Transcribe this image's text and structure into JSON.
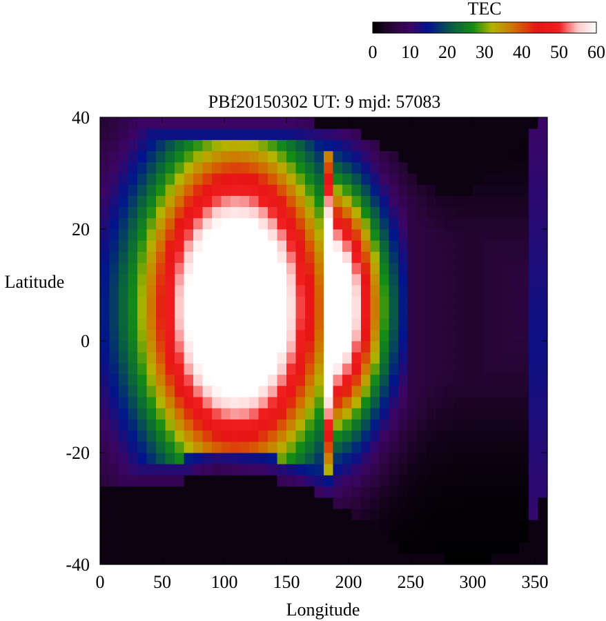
{
  "chart_data": {
    "type": "heatmap",
    "title": "PBf20150302  UT: 9  mjd: 57083",
    "xlabel": "Longitude",
    "ylabel": "Latitude",
    "xlim": [
      0,
      360
    ],
    "ylim": [
      -40,
      40
    ],
    "x_ticks": [
      "0",
      "50",
      "100",
      "150",
      "200",
      "250",
      "300",
      "350"
    ],
    "y_ticks": [
      "40",
      "20",
      "0",
      "-20",
      "-40"
    ],
    "x_tick_values": [
      0,
      50,
      100,
      150,
      200,
      250,
      300,
      350
    ],
    "y_tick_values": [
      40,
      20,
      0,
      -20,
      -40
    ],
    "grid": false,
    "colorbar": {
      "label": "TEC",
      "range": [
        0,
        60
      ],
      "ticks": [
        "0",
        "10",
        "20",
        "30",
        "40",
        "50",
        "60"
      ],
      "tick_values": [
        0,
        10,
        20,
        30,
        40,
        50,
        60
      ],
      "colors": [
        "#000000",
        "#2a0a3e",
        "#3d0a6a",
        "#00108c",
        "#1e7a1e",
        "#b4b400",
        "#d47800",
        "#e61414",
        "#f02020",
        "#ffffff"
      ]
    },
    "grid_cells": {
      "lon_step": 7.5,
      "lat_step": 2.0
    },
    "field_description_points": {
      "anomaly_crest_max_lon": 140,
      "peak_value": 60
    }
  }
}
